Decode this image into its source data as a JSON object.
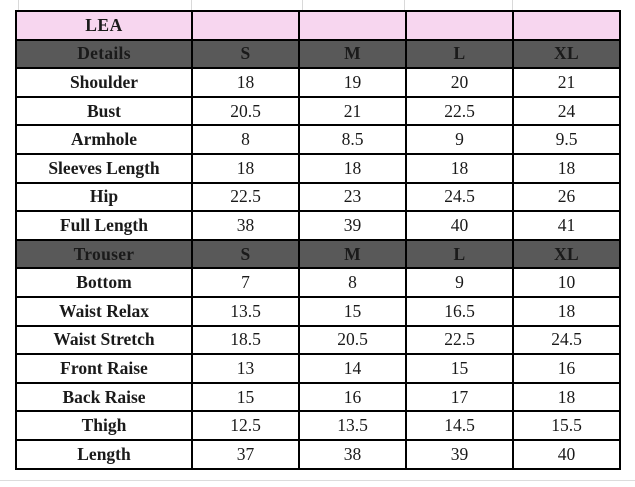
{
  "chart_data": {
    "type": "table",
    "title": "LEA",
    "size_columns": [
      "S",
      "M",
      "L",
      "XL"
    ],
    "sections": [
      {
        "header": "Details",
        "rows": [
          {
            "label": "Shoulder",
            "values": [
              "18",
              "19",
              "20",
              "21"
            ]
          },
          {
            "label": "Bust",
            "values": [
              "20.5",
              "21",
              "22.5",
              "24"
            ]
          },
          {
            "label": "Armhole",
            "values": [
              "8",
              "8.5",
              "9",
              "9.5"
            ]
          },
          {
            "label": "Sleeves Length",
            "values": [
              "18",
              "18",
              "18",
              "18"
            ]
          },
          {
            "label": "Hip",
            "values": [
              "22.5",
              "23",
              "24.5",
              "26"
            ]
          },
          {
            "label": "Full Length",
            "values": [
              "38",
              "39",
              "40",
              "41"
            ]
          }
        ]
      },
      {
        "header": "Trouser",
        "rows": [
          {
            "label": "Bottom",
            "values": [
              "7",
              "8",
              "9",
              "10"
            ]
          },
          {
            "label": "Waist Relax",
            "values": [
              "13.5",
              "15",
              "16.5",
              "18"
            ]
          },
          {
            "label": "Waist Stretch",
            "values": [
              "18.5",
              "20.5",
              "22.5",
              "24.5"
            ]
          },
          {
            "label": "Front Raise",
            "values": [
              "13",
              "14",
              "15",
              "16"
            ]
          },
          {
            "label": "Back Raise",
            "values": [
              "15",
              "16",
              "17",
              "18"
            ]
          },
          {
            "label": "Thigh",
            "values": [
              "12.5",
              "13.5",
              "14.5",
              "15.5"
            ]
          },
          {
            "label": "Length",
            "values": [
              "37",
              "38",
              "39",
              "40"
            ]
          }
        ]
      }
    ],
    "layout": {
      "grid": "black 2px cell borders, faint spreadsheet gridlines above and below table"
    }
  },
  "colors": {
    "brand_row_bg": "#F7D6EF",
    "brand_text": "#C0101C",
    "header_bg": "#595959",
    "header_text": "#FFFFFF",
    "cell_border": "#000000",
    "body_text": "#1A1A1A",
    "faint_gridline": "#D9D9D9",
    "page_bg": "#FFFFFF"
  }
}
